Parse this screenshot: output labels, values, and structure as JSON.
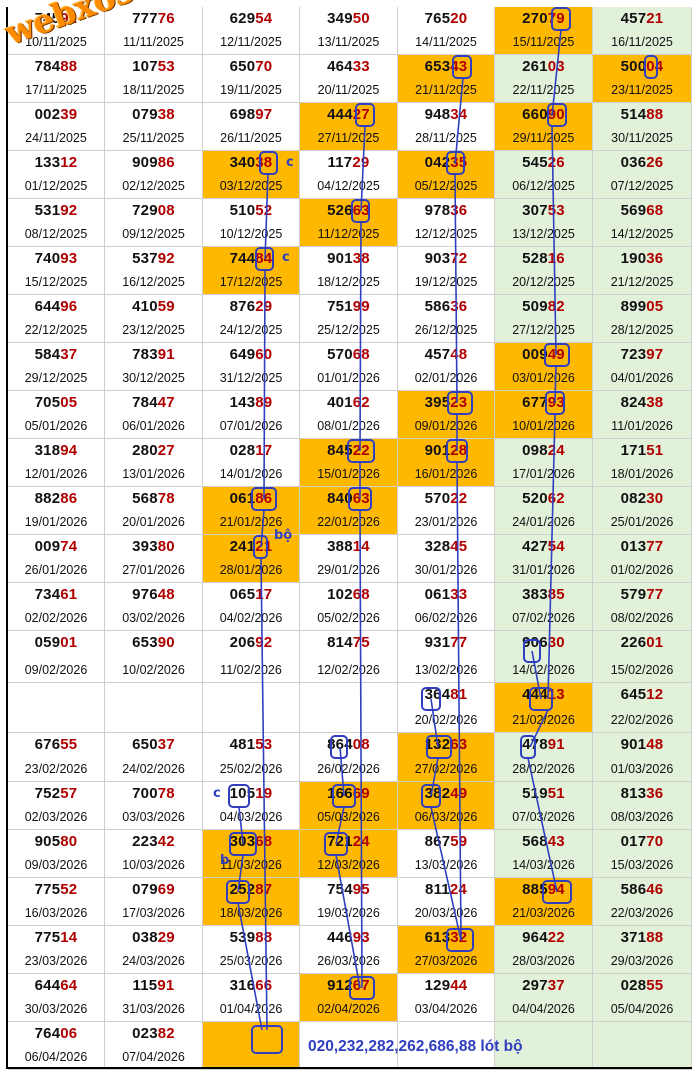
{
  "logo_text": "webxoso.net",
  "summary_text": "020,232,282,262,686,88 lót bộ",
  "notes": [
    "c",
    "c",
    "bộ",
    "c",
    "b"
  ],
  "colors": {
    "highlight": "#ffb800",
    "last_column": "#e2f1da",
    "tail_digits": "#b00000",
    "marker": "#2f3fc0"
  },
  "rows": [
    [
      {
        "n": "74592",
        "d": "10/11/2025"
      },
      {
        "n": "77776",
        "d": "11/11/2025"
      },
      {
        "n": "62954",
        "d": "12/11/2025"
      },
      {
        "n": "34950",
        "d": "13/11/2025"
      },
      {
        "n": "76520",
        "d": "14/11/2025"
      },
      {
        "n": "27079",
        "d": "15/11/2025",
        "h": true
      },
      {
        "n": "45721",
        "d": "16/11/2025"
      }
    ],
    [
      {
        "n": "78488",
        "d": "17/11/2025"
      },
      {
        "n": "10753",
        "d": "18/11/2025"
      },
      {
        "n": "65070",
        "d": "19/11/2025"
      },
      {
        "n": "46433",
        "d": "20/11/2025"
      },
      {
        "n": "65343",
        "d": "21/11/2025",
        "h": true
      },
      {
        "n": "26103",
        "d": "22/11/2025"
      },
      {
        "n": "50004",
        "d": "23/11/2025",
        "h": true
      }
    ],
    [
      {
        "n": "00239",
        "d": "24/11/2025"
      },
      {
        "n": "07938",
        "d": "25/11/2025"
      },
      {
        "n": "69897",
        "d": "26/11/2025"
      },
      {
        "n": "44427",
        "d": "27/11/2025",
        "h": true
      },
      {
        "n": "94834",
        "d": "28/11/2025"
      },
      {
        "n": "66090",
        "d": "29/11/2025",
        "h": true
      },
      {
        "n": "51488",
        "d": "30/11/2025"
      }
    ],
    [
      {
        "n": "13312",
        "d": "01/12/2025"
      },
      {
        "n": "90986",
        "d": "02/12/2025"
      },
      {
        "n": "34038",
        "d": "03/12/2025",
        "h": true
      },
      {
        "n": "11729",
        "d": "04/12/2025"
      },
      {
        "n": "04235",
        "d": "05/12/2025",
        "h": true
      },
      {
        "n": "54526",
        "d": "06/12/2025"
      },
      {
        "n": "03626",
        "d": "07/12/2025"
      }
    ],
    [
      {
        "n": "53192",
        "d": "08/12/2025"
      },
      {
        "n": "72908",
        "d": "09/12/2025"
      },
      {
        "n": "51052",
        "d": "10/12/2025"
      },
      {
        "n": "52663",
        "d": "11/12/2025",
        "h": true
      },
      {
        "n": "97836",
        "d": "12/12/2025"
      },
      {
        "n": "30753",
        "d": "13/12/2025"
      },
      {
        "n": "56968",
        "d": "14/12/2025"
      }
    ],
    [
      {
        "n": "74093",
        "d": "15/12/2025"
      },
      {
        "n": "53792",
        "d": "16/12/2025"
      },
      {
        "n": "74484",
        "d": "17/12/2025",
        "h": true
      },
      {
        "n": "90138",
        "d": "18/12/2025"
      },
      {
        "n": "90372",
        "d": "19/12/2025"
      },
      {
        "n": "52816",
        "d": "20/12/2025"
      },
      {
        "n": "19036",
        "d": "21/12/2025"
      }
    ],
    [
      {
        "n": "64496",
        "d": "22/12/2025"
      },
      {
        "n": "41059",
        "d": "23/12/2025"
      },
      {
        "n": "87629",
        "d": "24/12/2025"
      },
      {
        "n": "75199",
        "d": "25/12/2025"
      },
      {
        "n": "58636",
        "d": "26/12/2025"
      },
      {
        "n": "50982",
        "d": "27/12/2025"
      },
      {
        "n": "89905",
        "d": "28/12/2025"
      }
    ],
    [
      {
        "n": "58437",
        "d": "29/12/2025"
      },
      {
        "n": "78391",
        "d": "30/12/2025"
      },
      {
        "n": "64960",
        "d": "31/12/2025"
      },
      {
        "n": "57068",
        "d": "01/01/2026"
      },
      {
        "n": "45748",
        "d": "02/01/2026"
      },
      {
        "n": "00949",
        "d": "03/01/2026",
        "h": true
      },
      {
        "n": "72397",
        "d": "04/01/2026"
      }
    ],
    [
      {
        "n": "70505",
        "d": "05/01/2026"
      },
      {
        "n": "78447",
        "d": "06/01/2026"
      },
      {
        "n": "14389",
        "d": "07/01/2026"
      },
      {
        "n": "40162",
        "d": "08/01/2026"
      },
      {
        "n": "39523",
        "d": "09/01/2026",
        "h": true
      },
      {
        "n": "67793",
        "d": "10/01/2026",
        "h": true
      },
      {
        "n": "82438",
        "d": "11/01/2026"
      }
    ],
    [
      {
        "n": "31894",
        "d": "12/01/2026"
      },
      {
        "n": "28027",
        "d": "13/01/2026"
      },
      {
        "n": "02817",
        "d": "14/01/2026"
      },
      {
        "n": "84522",
        "d": "15/01/2026",
        "h": true
      },
      {
        "n": "90128",
        "d": "16/01/2026",
        "h": true
      },
      {
        "n": "09824",
        "d": "17/01/2026"
      },
      {
        "n": "17151",
        "d": "18/01/2026"
      }
    ],
    [
      {
        "n": "88286",
        "d": "19/01/2026"
      },
      {
        "n": "56878",
        "d": "20/01/2026"
      },
      {
        "n": "06186",
        "d": "21/01/2026",
        "h": true
      },
      {
        "n": "84063",
        "d": "22/01/2026",
        "h": true
      },
      {
        "n": "57022",
        "d": "23/01/2026"
      },
      {
        "n": "52062",
        "d": "24/01/2026"
      },
      {
        "n": "08230",
        "d": "25/01/2026"
      }
    ],
    [
      {
        "n": "00974",
        "d": "26/01/2026"
      },
      {
        "n": "39380",
        "d": "27/01/2026"
      },
      {
        "n": "24121",
        "d": "28/01/2026",
        "h": true
      },
      {
        "n": "38814",
        "d": "29/01/2026"
      },
      {
        "n": "32845",
        "d": "30/01/2026"
      },
      {
        "n": "42754",
        "d": "31/01/2026"
      },
      {
        "n": "01377",
        "d": "01/02/2026"
      }
    ],
    [
      {
        "n": "73461",
        "d": "02/02/2026"
      },
      {
        "n": "97648",
        "d": "03/02/2026"
      },
      {
        "n": "06517",
        "d": "04/02/2026"
      },
      {
        "n": "10268",
        "d": "05/02/2026"
      },
      {
        "n": "06133",
        "d": "06/02/2026"
      },
      {
        "n": "38385",
        "d": "07/02/2026"
      },
      {
        "n": "57977",
        "d": "08/02/2026"
      }
    ],
    [
      {
        "n": "05901",
        "d": "09/02/2026"
      },
      {
        "n": "65390",
        "d": "10/02/2026"
      },
      {
        "n": "20692",
        "d": "11/02/2026"
      },
      {
        "n": "81475",
        "d": "12/02/2026"
      },
      {
        "n": "93177",
        "d": "13/02/2026"
      },
      {
        "n": "90630",
        "d": "14/02/2026"
      },
      {
        "n": "22601",
        "d": "15/02/2026"
      }
    ],
    [
      {
        "n": "",
        "d": ""
      },
      {
        "n": "",
        "d": ""
      },
      {
        "n": "",
        "d": ""
      },
      {
        "n": "",
        "d": ""
      },
      {
        "n": "36481",
        "d": "20/02/2026"
      },
      {
        "n": "44413",
        "d": "21/02/2026",
        "h": true
      },
      {
        "n": "64512",
        "d": "22/02/2026"
      }
    ],
    [
      {
        "n": "67655",
        "d": "23/02/2026"
      },
      {
        "n": "65037",
        "d": "24/02/2026"
      },
      {
        "n": "48153",
        "d": "25/02/2026"
      },
      {
        "n": "86408",
        "d": "26/02/2026"
      },
      {
        "n": "13263",
        "d": "27/02/2026",
        "h": true
      },
      {
        "n": "47891",
        "d": "28/02/2026"
      },
      {
        "n": "90148",
        "d": "01/03/2026"
      }
    ],
    [
      {
        "n": "75257",
        "d": "02/03/2026"
      },
      {
        "n": "70078",
        "d": "03/03/2026"
      },
      {
        "n": "10519",
        "d": "04/03/2026"
      },
      {
        "n": "16669",
        "d": "05/03/2026",
        "h": true
      },
      {
        "n": "38249",
        "d": "06/03/2026",
        "h": true
      },
      {
        "n": "51951",
        "d": "07/03/2026"
      },
      {
        "n": "81336",
        "d": "08/03/2026"
      }
    ],
    [
      {
        "n": "90580",
        "d": "09/03/2026"
      },
      {
        "n": "22342",
        "d": "10/03/2026"
      },
      {
        "n": "30368",
        "d": "11/03/2026",
        "h": true
      },
      {
        "n": "72124",
        "d": "12/03/2026",
        "h": true
      },
      {
        "n": "86759",
        "d": "13/03/2026"
      },
      {
        "n": "56843",
        "d": "14/03/2026"
      },
      {
        "n": "01770",
        "d": "15/03/2026"
      }
    ],
    [
      {
        "n": "77552",
        "d": "16/03/2026"
      },
      {
        "n": "07969",
        "d": "17/03/2026"
      },
      {
        "n": "25287",
        "d": "18/03/2026",
        "h": true
      },
      {
        "n": "75495",
        "d": "19/03/2026"
      },
      {
        "n": "81124",
        "d": "20/03/2026"
      },
      {
        "n": "88594",
        "d": "21/03/2026",
        "h": true
      },
      {
        "n": "58646",
        "d": "22/03/2026"
      }
    ],
    [
      {
        "n": "77514",
        "d": "23/03/2026"
      },
      {
        "n": "03829",
        "d": "24/03/2026"
      },
      {
        "n": "53988",
        "d": "25/03/2026"
      },
      {
        "n": "44693",
        "d": "26/03/2026"
      },
      {
        "n": "61332",
        "d": "27/03/2026",
        "h": true
      },
      {
        "n": "96422",
        "d": "28/03/2026"
      },
      {
        "n": "37188",
        "d": "29/03/2026"
      }
    ],
    [
      {
        "n": "64464",
        "d": "30/03/2026"
      },
      {
        "n": "11591",
        "d": "31/03/2026"
      },
      {
        "n": "31666",
        "d": "01/04/2026"
      },
      {
        "n": "91267",
        "d": "02/04/2026",
        "h": true
      },
      {
        "n": "12944",
        "d": "03/04/2026"
      },
      {
        "n": "29737",
        "d": "04/04/2026"
      },
      {
        "n": "02855",
        "d": "05/04/2026"
      }
    ],
    [
      {
        "n": "76406",
        "d": "06/04/2026"
      },
      {
        "n": "02382",
        "d": "07/04/2026"
      },
      {
        "n": "",
        "d": "",
        "h": true
      },
      {
        "n": "",
        "d": ""
      },
      {
        "n": "",
        "d": ""
      },
      {
        "n": "",
        "d": ""
      },
      {
        "n": "",
        "d": ""
      }
    ]
  ]
}
